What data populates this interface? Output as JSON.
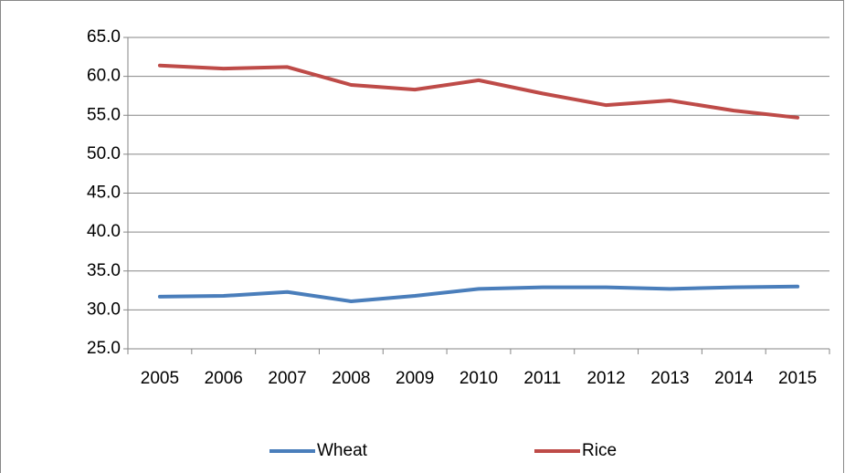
{
  "chart_data": {
    "type": "line",
    "categories": [
      "2005",
      "2006",
      "2007",
      "2008",
      "2009",
      "2010",
      "2011",
      "2012",
      "2013",
      "2014",
      "2015"
    ],
    "series": [
      {
        "name": "Wheat",
        "color": "#4a7ebb",
        "values": [
          31.7,
          31.8,
          32.3,
          31.1,
          31.8,
          32.7,
          32.9,
          32.9,
          32.7,
          32.9,
          33.0
        ]
      },
      {
        "name": "Rice",
        "color": "#be4b48",
        "values": [
          61.4,
          61.0,
          61.2,
          58.9,
          58.3,
          59.5,
          57.8,
          56.3,
          56.9,
          55.6,
          54.7
        ]
      }
    ],
    "ylim": [
      25,
      65
    ],
    "yticks": [
      {
        "value": 25,
        "label": "25.0"
      },
      {
        "value": 30,
        "label": "30.0"
      },
      {
        "value": 35,
        "label": "35.0"
      },
      {
        "value": 40,
        "label": "40.0"
      },
      {
        "value": 45,
        "label": "45.0"
      },
      {
        "value": 50,
        "label": "50.0"
      },
      {
        "value": 55,
        "label": "55.0"
      },
      {
        "value": 60,
        "label": "60.0"
      },
      {
        "value": 65,
        "label": "65.0"
      }
    ],
    "grid": true,
    "legend": "bottom"
  }
}
